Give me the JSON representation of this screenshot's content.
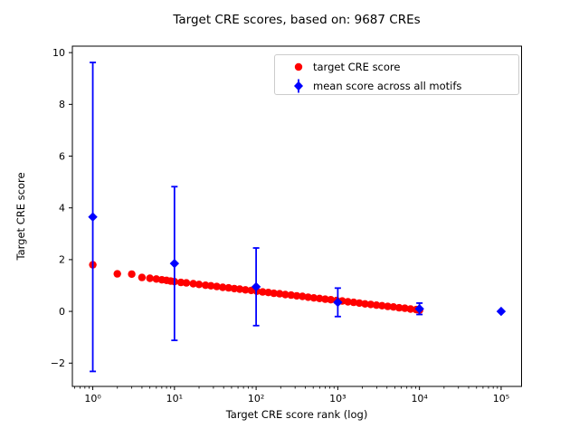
{
  "figure": {
    "background": "#ffffff"
  },
  "chart_data": {
    "type": "scatter",
    "title": "Target CRE scores, based on: 9687 CREs",
    "xlabel": "Target CRE score rank (log)",
    "ylabel": "Target CRE score",
    "x_scale": "log",
    "x_log_range": [
      -0.25,
      5.25
    ],
    "ylim": [
      -2.9,
      10.25
    ],
    "grid": false,
    "legend_position": "upper right",
    "x_ticks": [
      {
        "value": 1,
        "label": "10⁰"
      },
      {
        "value": 10,
        "label": "10¹"
      },
      {
        "value": 100,
        "label": "10²"
      },
      {
        "value": 1000,
        "label": "10³"
      },
      {
        "value": 10000,
        "label": "10⁴"
      },
      {
        "value": 100000,
        "label": "10⁵"
      }
    ],
    "y_ticks": [
      {
        "value": -2,
        "label": "−2"
      },
      {
        "value": 0,
        "label": "0"
      },
      {
        "value": 2,
        "label": "2"
      },
      {
        "value": 4,
        "label": "4"
      },
      {
        "value": 6,
        "label": "6"
      },
      {
        "value": 8,
        "label": "8"
      },
      {
        "value": 10,
        "label": "10"
      }
    ],
    "series": [
      {
        "name": "target CRE score",
        "marker": "circle",
        "color": "#ff0000",
        "points": [
          [
            1,
            1.8
          ],
          [
            2,
            1.45
          ],
          [
            3,
            1.44
          ],
          [
            4,
            1.31
          ],
          [
            5,
            1.28
          ],
          [
            6,
            1.25
          ],
          [
            7,
            1.22
          ],
          [
            8,
            1.2
          ],
          [
            9,
            1.17
          ],
          [
            10,
            1.15
          ],
          [
            12,
            1.12
          ],
          [
            14,
            1.1
          ],
          [
            17,
            1.07
          ],
          [
            20,
            1.04
          ],
          [
            24,
            1.01
          ],
          [
            28,
            0.99
          ],
          [
            33,
            0.96
          ],
          [
            39,
            0.93
          ],
          [
            46,
            0.91
          ],
          [
            54,
            0.88
          ],
          [
            63,
            0.86
          ],
          [
            74,
            0.83
          ],
          [
            87,
            0.81
          ],
          [
            102,
            0.78
          ],
          [
            120,
            0.75
          ],
          [
            141,
            0.73
          ],
          [
            165,
            0.7
          ],
          [
            194,
            0.68
          ],
          [
            228,
            0.65
          ],
          [
            268,
            0.63
          ],
          [
            314,
            0.6
          ],
          [
            369,
            0.58
          ],
          [
            433,
            0.55
          ],
          [
            509,
            0.52
          ],
          [
            597,
            0.5
          ],
          [
            701,
            0.47
          ],
          [
            823,
            0.45
          ],
          [
            966,
            0.42
          ],
          [
            1134,
            0.4
          ],
          [
            1331,
            0.37
          ],
          [
            1563,
            0.35
          ],
          [
            1835,
            0.32
          ],
          [
            2154,
            0.29
          ],
          [
            2529,
            0.27
          ],
          [
            2969,
            0.24
          ],
          [
            3486,
            0.22
          ],
          [
            4093,
            0.19
          ],
          [
            4805,
            0.17
          ],
          [
            5641,
            0.14
          ],
          [
            6623,
            0.12
          ],
          [
            7775,
            0.09
          ],
          [
            9128,
            0.07
          ],
          [
            10000,
            0.05
          ]
        ]
      },
      {
        "name": "mean score across all motifs",
        "marker": "diamond",
        "color": "#0000ff",
        "points": [
          [
            1,
            3.65
          ],
          [
            10,
            1.85
          ],
          [
            100,
            0.95
          ],
          [
            1000,
            0.35
          ],
          [
            10000,
            0.1
          ],
          [
            100000,
            0.0
          ]
        ],
        "yerr": [
          5.97,
          2.97,
          1.5,
          0.55,
          0.22,
          0.02
        ]
      }
    ]
  }
}
